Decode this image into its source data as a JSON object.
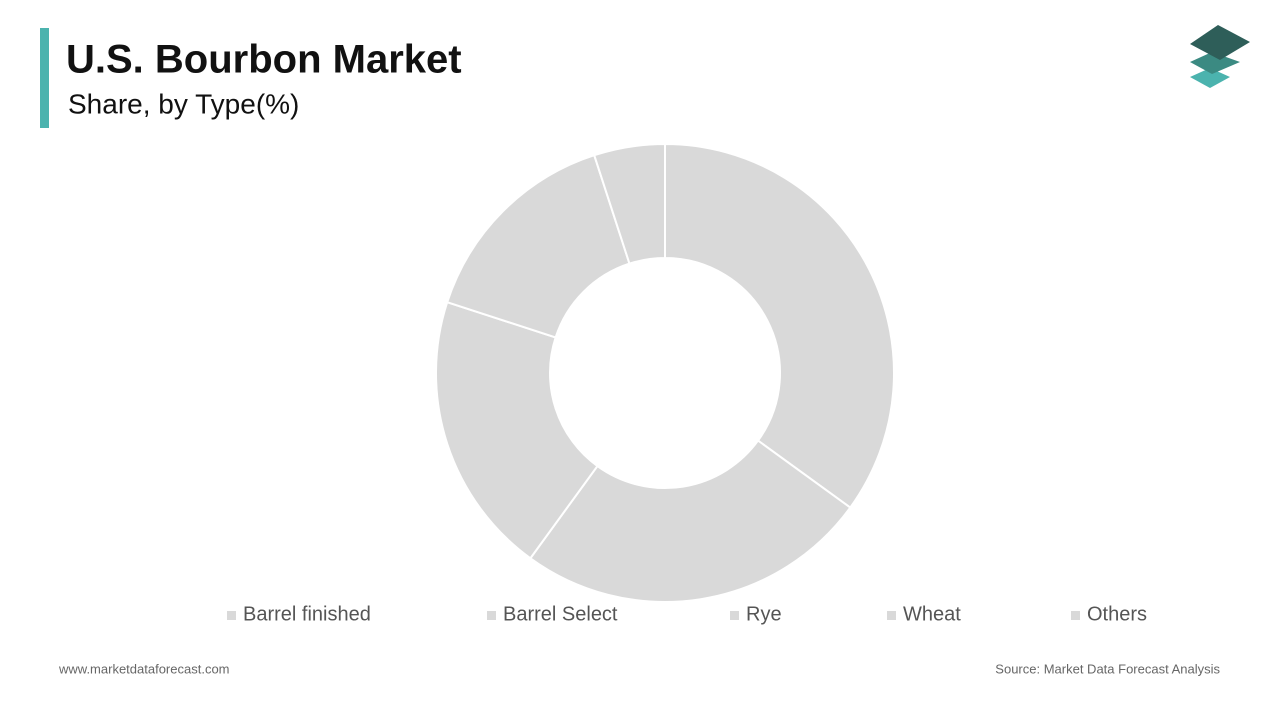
{
  "chart_data": {
    "type": "donut",
    "title": "U.S. Bourbon Market",
    "subtitle": "Share, by Type(%)",
    "categories": [
      "Barrel finished",
      "Barrel Select",
      "Rye",
      "Wheat",
      "Others"
    ],
    "values": [
      35,
      25,
      20,
      15,
      5
    ],
    "colors": [
      "#d9d9d9",
      "#d9d9d9",
      "#d9d9d9",
      "#d9d9d9",
      "#d9d9d9"
    ],
    "legend": "bottom"
  },
  "footer": {
    "website": "www.marketdataforecast.com",
    "source": "Source: Market Data Forecast Analysis"
  }
}
